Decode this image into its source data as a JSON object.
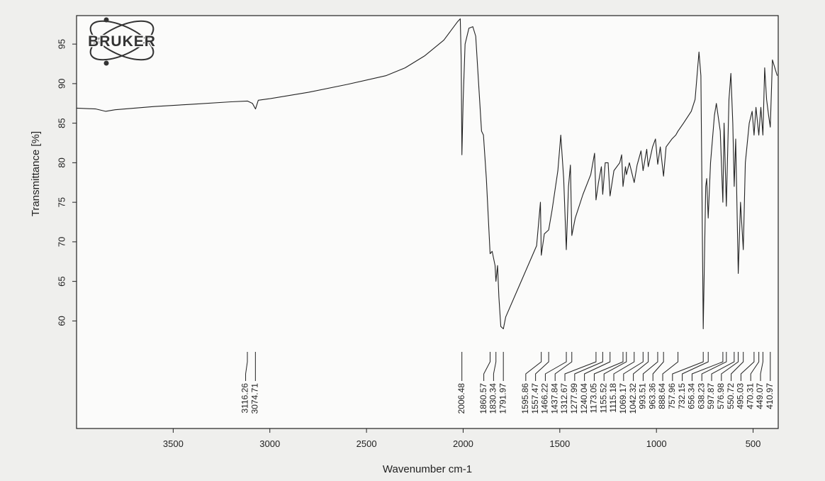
{
  "chart_data": {
    "type": "line",
    "logo": "BRUKER",
    "xlabel": "Wavenumber cm-1",
    "ylabel": "Transmittance [%]",
    "xlim": [
      4000,
      370
    ],
    "ylim": [
      46.4,
      98.6
    ],
    "xticks": [
      3500,
      3000,
      2500,
      2000,
      1500,
      1000,
      500
    ],
    "yticks": [
      60,
      65,
      70,
      75,
      80,
      85,
      90,
      95
    ],
    "series": [
      {
        "color": "#222222",
        "x": [
          4000,
          3900,
          3850,
          3800,
          3600,
          3400,
          3200,
          3116,
          3090,
          3074,
          3060,
          3000,
          2800,
          2600,
          2400,
          2300,
          2200,
          2100,
          2030,
          2015,
          2010,
          2006.48,
          2000,
          1990,
          1970,
          1950,
          1935,
          1920,
          1905,
          1895,
          1880,
          1860.57,
          1850,
          1835,
          1830.34,
          1822,
          1815,
          1805,
          1791.97,
          1780,
          1700,
          1620,
          1600,
          1595.86,
          1580,
          1557.47,
          1540,
          1510,
          1495,
          1480,
          1466.22,
          1455,
          1445,
          1437.84,
          1420,
          1380,
          1340,
          1320,
          1312.67,
          1300,
          1285,
          1277.99,
          1265,
          1250,
          1240.04,
          1220,
          1190,
          1180,
          1173.05,
          1160,
          1155.52,
          1140,
          1115.18,
          1100,
          1080,
          1069.17,
          1050,
          1042.32,
          1020,
          1005,
          993.51,
          980,
          963.36,
          950,
          920,
          900,
          888.64,
          860,
          820,
          800,
          780,
          770,
          757.96,
          745,
          740,
          732.15,
          720,
          700,
          690,
          670,
          656.34,
          650,
          638.23,
          625,
          615,
          605,
          597.87,
          590,
          576.98,
          565,
          550.72,
          540,
          520,
          505,
          495.03,
          485,
          470.31,
          460,
          449.07,
          440,
          430,
          420,
          410.97,
          400,
          375
        ],
        "values": [
          86.9,
          86.8,
          86.5,
          86.7,
          87.1,
          87.4,
          87.7,
          87.8,
          87.5,
          86.8,
          87.9,
          88.1,
          88.9,
          89.9,
          91.0,
          92.0,
          93.5,
          95.5,
          97.8,
          98.2,
          93,
          81,
          88,
          95,
          97,
          97.2,
          96,
          90,
          84,
          83.5,
          78,
          68.5,
          68.8,
          67,
          65,
          67,
          63,
          59.3,
          59,
          60.5,
          65,
          69.5,
          75,
          68.3,
          71,
          71.5,
          74,
          79,
          83.5,
          78,
          69,
          77,
          79.7,
          70.8,
          73,
          76,
          78.5,
          81.2,
          75.3,
          77.5,
          79.5,
          76,
          80,
          80,
          75.8,
          79,
          80,
          81,
          77,
          79.5,
          78.5,
          80,
          77.5,
          79.7,
          81.5,
          79,
          81.7,
          79.5,
          82,
          83,
          79.8,
          82,
          78.3,
          82,
          83,
          83.5,
          84,
          85,
          86.5,
          88,
          94,
          91,
          59,
          77,
          78,
          73,
          80,
          86,
          87.5,
          84,
          75,
          85,
          74.5,
          88,
          91.3,
          85,
          77,
          83,
          66,
          75,
          69,
          80,
          85,
          86.5,
          83.5,
          87,
          83.5,
          87,
          83.5,
          92,
          88,
          86,
          84.5,
          93,
          91
        ]
      }
    ],
    "peaks": [
      3116.26,
      3074.71,
      2006.48,
      1860.57,
      1830.34,
      1791.97,
      1595.86,
      1557.47,
      1466.22,
      1437.84,
      1312.67,
      1277.99,
      1240.04,
      1173.05,
      1155.52,
      1115.18,
      1069.17,
      1042.32,
      993.51,
      963.36,
      888.64,
      757.96,
      732.15,
      656.34,
      638.23,
      597.87,
      576.98,
      550.72,
      495.03,
      470.31,
      449.07,
      410.97
    ]
  }
}
